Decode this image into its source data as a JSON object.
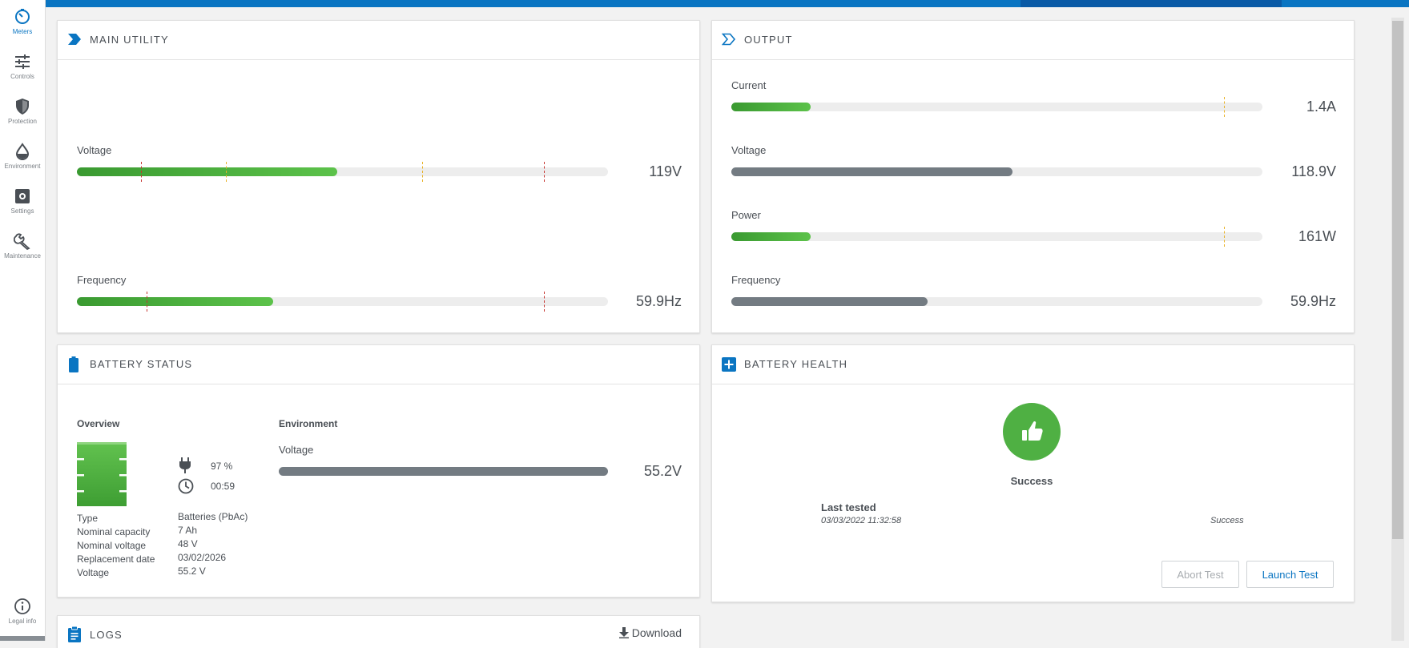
{
  "sidebar": {
    "items": [
      {
        "label": "Meters",
        "icon": "meters-icon",
        "active": true
      },
      {
        "label": "Controls",
        "icon": "controls-icon"
      },
      {
        "label": "Protection",
        "icon": "shield-icon"
      },
      {
        "label": "Environment",
        "icon": "drop-icon"
      },
      {
        "label": "Settings",
        "icon": "gear-icon"
      },
      {
        "label": "Maintenance",
        "icon": "wrench-icon"
      }
    ],
    "legal_label": "Legal info"
  },
  "main_utility": {
    "title": "MAIN UTILITY",
    "voltage": {
      "label": "Voltage",
      "value": "119V",
      "fill_fraction": 0.49
    },
    "frequency": {
      "label": "Frequency",
      "value": "59.9Hz",
      "fill_fraction": 0.37
    }
  },
  "output": {
    "title": "OUTPUT",
    "current": {
      "label": "Current",
      "value": "1.4A",
      "fill_fraction": 0.15
    },
    "voltage": {
      "label": "Voltage",
      "value": "118.9V",
      "fill_fraction": 0.53
    },
    "power": {
      "label": "Power",
      "value": "161W",
      "fill_fraction": 0.15
    },
    "frequency": {
      "label": "Frequency",
      "value": "59.9Hz",
      "fill_fraction": 0.37
    }
  },
  "battery_status": {
    "title": "BATTERY STATUS",
    "overview_label": "Overview",
    "charge": "97 %",
    "runtime": "00:59",
    "environment_label": "Environment",
    "env_voltage_label": "Voltage",
    "env_voltage_value": "55.2V",
    "env_voltage_fill": 1.0,
    "details": [
      {
        "key": "Type",
        "value": "Batteries (PbAc)"
      },
      {
        "key": "Nominal capacity",
        "value": "7 Ah"
      },
      {
        "key": "Nominal voltage",
        "value": "48 V"
      },
      {
        "key": "Replacement date",
        "value": "03/02/2026"
      },
      {
        "key": "Voltage",
        "value": "55.2 V"
      }
    ]
  },
  "battery_health": {
    "title": "BATTERY HEALTH",
    "status": "Success",
    "last_tested_label": "Last tested",
    "last_tested_value": "03/03/2022 11:32:58",
    "result": "Success",
    "abort_label": "Abort Test",
    "launch_label": "Launch Test"
  },
  "logs": {
    "title": "LOGS",
    "download_label": "Download"
  },
  "colors": {
    "accent": "#0a75c2",
    "success": "#4fb043",
    "meter_green": "#4caf3f",
    "meter_gray": "#737b82"
  }
}
